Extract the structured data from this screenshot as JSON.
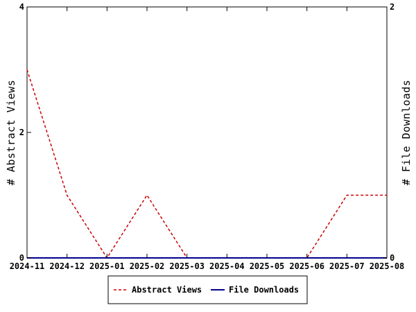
{
  "chart_data": {
    "type": "line",
    "x": [
      "2024-11",
      "2024-12",
      "2025-01",
      "2025-02",
      "2025-03",
      "2025-04",
      "2025-05",
      "2025-06",
      "2025-07",
      "2025-08"
    ],
    "y_left": {
      "label": "# Abstract Views",
      "ticks": [
        0,
        2,
        4
      ],
      "range": [
        0,
        4
      ]
    },
    "y_right": {
      "label": "# File Downloads",
      "ticks": [
        0,
        2
      ],
      "range": [
        0,
        2
      ]
    },
    "series": [
      {
        "name": "Abstract Views",
        "axis": "left",
        "color": "#cc0000",
        "style": "dashed",
        "values": [
          3,
          1,
          0,
          1,
          0,
          0,
          0,
          0,
          1,
          1
        ]
      },
      {
        "name": "File Downloads",
        "axis": "right",
        "color": "#00008b",
        "style": "solid",
        "values": [
          0,
          0,
          0,
          0,
          0,
          0,
          0,
          0,
          0,
          0
        ]
      }
    ],
    "grid": false,
    "legend_position": "bottom-center"
  }
}
